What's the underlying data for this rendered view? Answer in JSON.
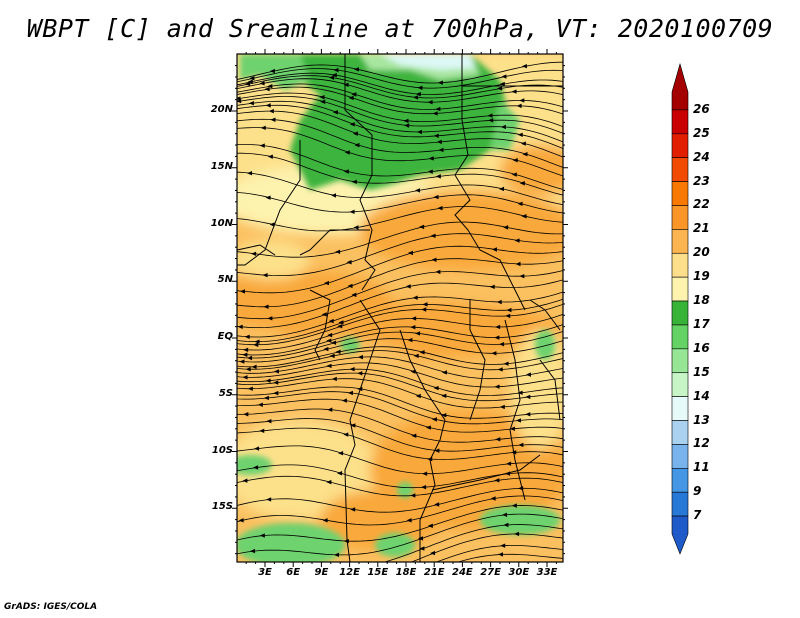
{
  "title": "WBPT [C] and Sreamline at 700hPa, VT: 2020100709",
  "credit": "GrADS: IGES/COLA",
  "lat_labels": [
    "20N",
    "15N",
    "10N",
    "5N",
    "EQ",
    "5S",
    "10S",
    "15S"
  ],
  "lon_labels": [
    "3E",
    "6E",
    "9E",
    "12E",
    "15E",
    "18E",
    "21E",
    "24E",
    "27E",
    "30E",
    "33E"
  ],
  "colorbar": {
    "levels": [
      "26",
      "25",
      "24",
      "23",
      "22",
      "21",
      "20",
      "19",
      "18",
      "17",
      "16",
      "15",
      "14",
      "13",
      "12",
      "11",
      "9",
      "7"
    ],
    "colors": [
      "#a50000",
      "#c80000",
      "#e11e00",
      "#f04b00",
      "#f87800",
      "#fa9628",
      "#fbb450",
      "#fdde8a",
      "#fdf2ae",
      "#37b437",
      "#64d264",
      "#96e696",
      "#c8f5c8",
      "#e6fafa",
      "#aad2f0",
      "#78b4eb",
      "#4696e6",
      "#2878d7",
      "#1e5ac8"
    ]
  },
  "map_colors": {
    "green_dark": "#3cb43c",
    "green_mid": "#6ed26e",
    "green_light": "#a8e6a0",
    "cyan_light": "#dcf8f5",
    "yellow_light": "#fdf2ae",
    "yellow": "#fde08a",
    "orange_light": "#fbc060",
    "orange": "#f9a83a"
  }
}
